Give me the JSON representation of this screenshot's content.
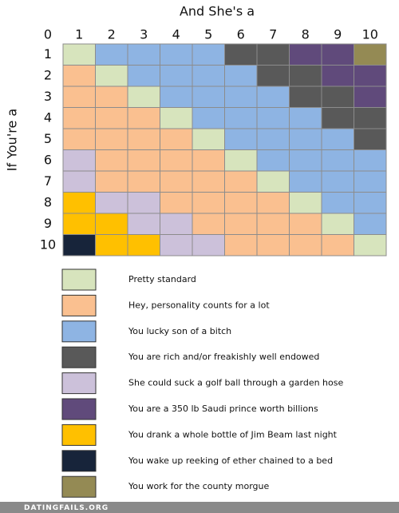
{
  "title": "And She's a",
  "side_title": "If You're a",
  "corner": 0,
  "columns": [
    1,
    2,
    3,
    4,
    5,
    6,
    7,
    8,
    9,
    10
  ],
  "rows": [
    1,
    2,
    3,
    4,
    5,
    6,
    7,
    8,
    9,
    10
  ],
  "legend": [
    {
      "color": "#d7e4bd",
      "label": "Pretty standard"
    },
    {
      "color": "#fac090",
      "label": "Hey, personality counts for a lot"
    },
    {
      "color": "#8eb4e3",
      "label": "You lucky son of a bitch"
    },
    {
      "color": "#595959",
      "label": "You are rich and/or freakishly well endowed"
    },
    {
      "color": "#ccc1da",
      "label": "She could suck a golf ball through a garden hose"
    },
    {
      "color": "#604a7b",
      "label": "You are a 350 lb Saudi prince worth billions"
    },
    {
      "color": "#ffc000",
      "label": "You drank a whole bottle of Jim Beam last night"
    },
    {
      "color": "#17243a",
      "label": "You wake up reeking of ether chained to a bed"
    },
    {
      "color": "#948a54",
      "label": "You work for the county morgue"
    }
  ],
  "grid": [
    [
      0,
      2,
      2,
      2,
      2,
      3,
      3,
      5,
      5,
      8
    ],
    [
      1,
      0,
      2,
      2,
      2,
      2,
      3,
      3,
      5,
      5
    ],
    [
      1,
      1,
      0,
      2,
      2,
      2,
      2,
      3,
      3,
      5
    ],
    [
      1,
      1,
      1,
      0,
      2,
      2,
      2,
      2,
      3,
      3
    ],
    [
      1,
      1,
      1,
      1,
      0,
      2,
      2,
      2,
      2,
      3
    ],
    [
      4,
      1,
      1,
      1,
      1,
      0,
      2,
      2,
      2,
      2
    ],
    [
      4,
      1,
      1,
      1,
      1,
      1,
      0,
      2,
      2,
      2
    ],
    [
      6,
      4,
      4,
      1,
      1,
      1,
      1,
      0,
      2,
      2
    ],
    [
      6,
      6,
      4,
      4,
      1,
      1,
      1,
      1,
      0,
      2
    ],
    [
      7,
      6,
      6,
      4,
      4,
      1,
      1,
      1,
      1,
      0
    ]
  ],
  "footer": "DATINGFAILS.ORG"
}
